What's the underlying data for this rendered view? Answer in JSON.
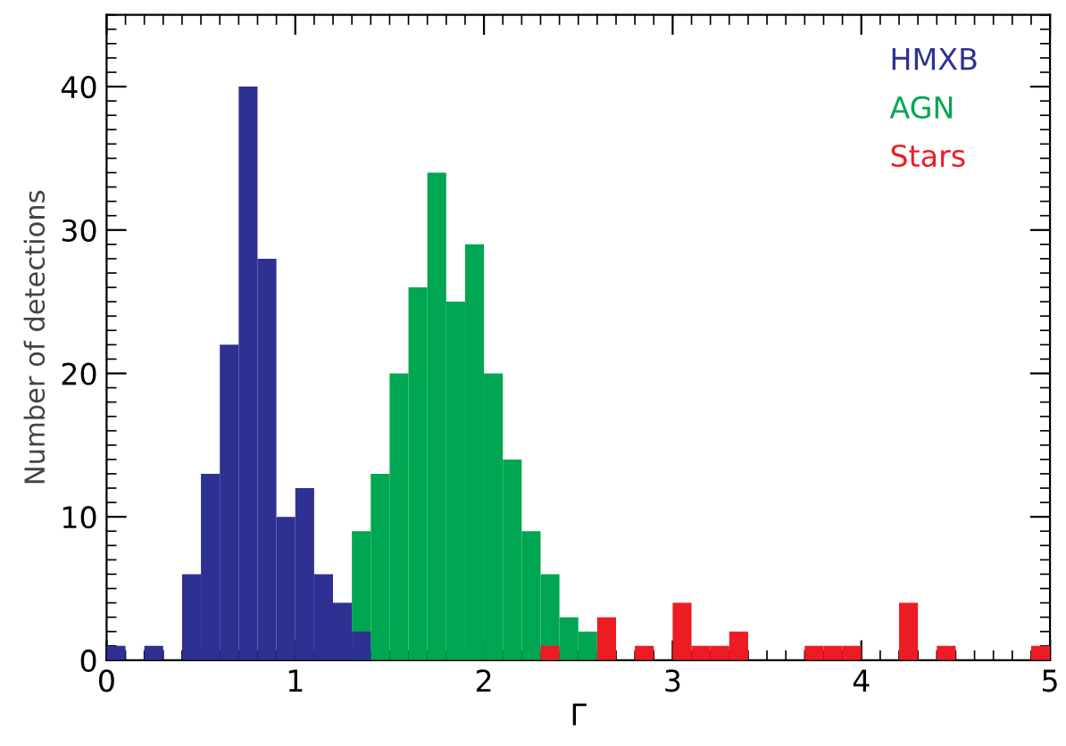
{
  "chart_data": {
    "type": "histogram",
    "xlabel": "Γ",
    "ylabel": "Number of detections",
    "bins": [
      0,
      0.1,
      0.2,
      0.3,
      0.4,
      0.5,
      0.6,
      0.7,
      0.8,
      0.9,
      1.0,
      1.1,
      1.2,
      1.3,
      1.4,
      1.5,
      1.6,
      1.7,
      1.8,
      1.9,
      2.0,
      2.1,
      2.2,
      2.3,
      2.4,
      2.5,
      2.6,
      2.7,
      2.8,
      2.9,
      3.0,
      3.1,
      3.2,
      3.3,
      3.4,
      3.5,
      3.6,
      3.7,
      3.8,
      3.9,
      4.0,
      4.1,
      4.2,
      4.3,
      4.4,
      4.5,
      4.6,
      4.7,
      4.8,
      4.9,
      5.0
    ],
    "series": [
      {
        "name": "HMXB",
        "color": "#2e3192",
        "values": [
          1,
          0,
          1,
          0,
          6,
          13,
          22,
          40,
          28,
          10,
          12,
          6,
          4,
          2,
          0,
          0,
          0,
          0,
          0,
          0,
          0,
          0,
          0,
          0,
          0,
          0,
          0,
          0,
          0,
          0,
          0,
          0,
          0,
          0,
          0,
          0,
          0,
          0,
          0,
          0,
          0,
          0,
          0,
          0,
          0,
          0,
          0,
          0,
          0,
          0
        ]
      },
      {
        "name": "AGN",
        "color": "#00a651",
        "values": [
          0,
          0,
          0,
          0,
          0,
          0,
          0,
          0,
          0,
          0,
          0,
          0,
          0,
          9,
          13,
          20,
          26,
          34,
          25,
          29,
          20,
          14,
          9,
          6,
          3,
          2,
          0,
          0,
          0,
          0,
          0,
          0,
          0,
          0,
          0,
          0,
          0,
          0,
          0,
          0,
          0,
          0,
          0,
          0,
          0,
          0,
          0,
          0,
          0,
          0
        ]
      },
      {
        "name": "Stars",
        "color": "#ed1c24",
        "values": [
          0,
          0,
          0,
          0,
          0,
          0,
          0,
          0,
          0,
          0,
          0,
          0,
          0,
          0,
          0,
          0,
          0,
          0,
          0,
          0,
          0,
          0,
          0,
          1,
          0,
          0,
          3,
          0,
          1,
          0,
          4,
          1,
          1,
          2,
          0,
          0,
          0,
          1,
          1,
          1,
          0,
          0,
          4,
          0,
          1,
          0,
          0,
          0,
          0,
          1
        ]
      }
    ],
    "xlim": [
      0,
      5
    ],
    "xticks": [
      0,
      1,
      2,
      3,
      4,
      5
    ],
    "ylim": [
      0,
      45
    ],
    "yticks": [
      0,
      10,
      20,
      30,
      40
    ],
    "legend": "top right",
    "grid": false
  }
}
